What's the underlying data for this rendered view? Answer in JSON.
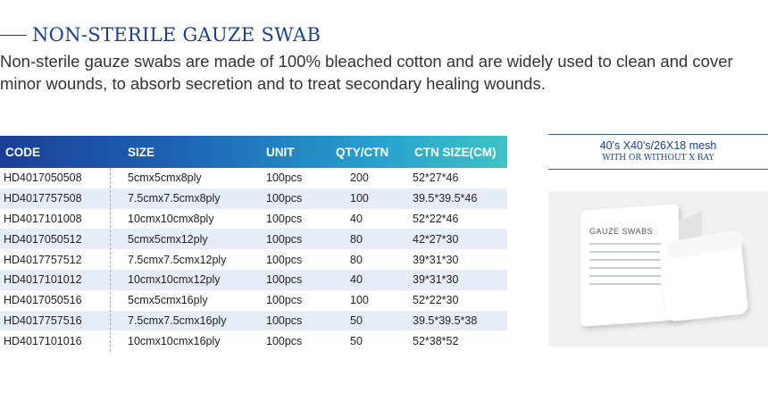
{
  "header": {
    "title": "NON-STERILE GAUZE SWAB",
    "description": "Non-sterile gauze swabs are made of 100% bleached cotton and are widely used to clean and cover minor wounds, to absorb secretion and to treat secondary healing wounds."
  },
  "table": {
    "columns": [
      "CODE",
      "SIZE",
      "UNIT",
      "QTY/CTN",
      "CTN SIZE(CM)"
    ],
    "rows": [
      [
        "HD4017050508",
        "5cmx5cmx8ply",
        "100pcs",
        "200",
        "52*27*46"
      ],
      [
        "HD4017757508",
        "7.5cmx7.5cmx8ply",
        "100pcs",
        "100",
        "39.5*39.5*46"
      ],
      [
        "HD4017101008",
        "10cmx10cmx8ply",
        "100pcs",
        "40",
        "52*22*46"
      ],
      [
        "HD4017050512",
        "5cmx5cmx12ply",
        "100pcs",
        "80",
        "42*27*30"
      ],
      [
        "HD4017757512",
        "7.5cmx7.5cmx12ply",
        "100pcs",
        "80",
        "39*31*30"
      ],
      [
        "HD4017101012",
        "10cmx10cmx12ply",
        "100pcs",
        "40",
        "39*31*30"
      ],
      [
        "HD4017050516",
        "5cmx5cmx16ply",
        "100pcs",
        "100",
        "52*22*30"
      ],
      [
        "HD4017757516",
        "7.5cmx7.5cmx16ply",
        "100pcs",
        "50",
        "39.5*39.5*38"
      ],
      [
        "HD4017101016",
        "10cmx10cmx16ply",
        "100pcs",
        "50",
        "52*38*52"
      ]
    ]
  },
  "spec": {
    "mesh": "40's X40's/26X18 mesh",
    "xray": "WITH OR WITHOUT X RAY"
  },
  "product_image": {
    "label": "GAUZE SWABS"
  },
  "colors": {
    "brand_blue": "#1d3f8a",
    "header_start": "#1c3f96",
    "header_end": "#3fc3c4",
    "stripe": "#e6edf7"
  }
}
